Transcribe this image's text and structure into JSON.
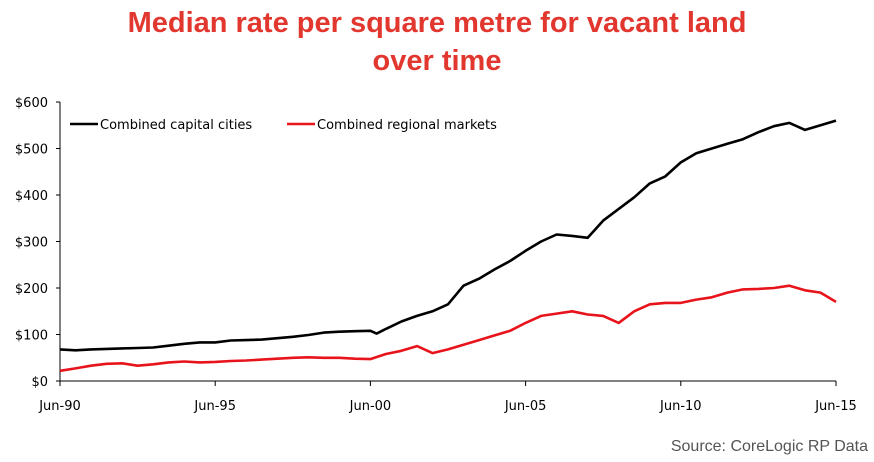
{
  "chart_data": {
    "type": "line",
    "title_lines": [
      "Median rate per square metre for vacant land",
      "over time"
    ],
    "xlabel": "",
    "ylabel": "",
    "x_ticks": [
      "Jun-90",
      "Jun-95",
      "Jun-00",
      "Jun-05",
      "Jun-10",
      "Jun-15"
    ],
    "y_ticks": [
      "$0",
      "$100",
      "$200",
      "$300",
      "$400",
      "$500",
      "$600"
    ],
    "ylim": [
      0,
      600
    ],
    "xlim": [
      1990.5,
      2015.5
    ],
    "grid": false,
    "legend_position": "top-left",
    "series": [
      {
        "name": "Combined capital cities",
        "color": "#000000",
        "points": [
          [
            1990.5,
            68
          ],
          [
            1991.0,
            66
          ],
          [
            1991.5,
            68
          ],
          [
            1992.0,
            69
          ],
          [
            1992.5,
            70
          ],
          [
            1993.0,
            71
          ],
          [
            1993.5,
            72
          ],
          [
            1994.0,
            76
          ],
          [
            1994.5,
            80
          ],
          [
            1995.0,
            83
          ],
          [
            1995.5,
            83
          ],
          [
            1996.0,
            87
          ],
          [
            1996.5,
            88
          ],
          [
            1997.0,
            89
          ],
          [
            1997.5,
            92
          ],
          [
            1998.0,
            95
          ],
          [
            1998.5,
            99
          ],
          [
            1999.0,
            104
          ],
          [
            1999.5,
            106
          ],
          [
            2000.0,
            107
          ],
          [
            2000.5,
            108
          ],
          [
            2000.7,
            102
          ],
          [
            2001.0,
            112
          ],
          [
            2001.5,
            128
          ],
          [
            2002.0,
            140
          ],
          [
            2002.5,
            150
          ],
          [
            2003.0,
            165
          ],
          [
            2003.5,
            205
          ],
          [
            2004.0,
            220
          ],
          [
            2004.5,
            240
          ],
          [
            2005.0,
            258
          ],
          [
            2005.5,
            280
          ],
          [
            2006.0,
            300
          ],
          [
            2006.5,
            315
          ],
          [
            2007.0,
            312
          ],
          [
            2007.5,
            308
          ],
          [
            2008.0,
            345
          ],
          [
            2008.5,
            370
          ],
          [
            2009.0,
            395
          ],
          [
            2009.5,
            425
          ],
          [
            2010.0,
            440
          ],
          [
            2010.5,
            470
          ],
          [
            2011.0,
            490
          ],
          [
            2011.5,
            500
          ],
          [
            2012.0,
            510
          ],
          [
            2012.5,
            520
          ],
          [
            2013.0,
            535
          ],
          [
            2013.5,
            548
          ],
          [
            2014.0,
            555
          ],
          [
            2014.5,
            540
          ],
          [
            2015.0,
            550
          ],
          [
            2015.5,
            560
          ]
        ]
      },
      {
        "name": "Combined regional markets",
        "color": "#e8141c",
        "points": [
          [
            1990.5,
            22
          ],
          [
            1991.0,
            27
          ],
          [
            1991.5,
            33
          ],
          [
            1992.0,
            37
          ],
          [
            1992.5,
            38
          ],
          [
            1993.0,
            33
          ],
          [
            1993.5,
            36
          ],
          [
            1994.0,
            40
          ],
          [
            1994.5,
            42
          ],
          [
            1995.0,
            40
          ],
          [
            1995.5,
            41
          ],
          [
            1996.0,
            43
          ],
          [
            1996.5,
            44
          ],
          [
            1997.0,
            46
          ],
          [
            1997.5,
            48
          ],
          [
            1998.0,
            50
          ],
          [
            1998.5,
            51
          ],
          [
            1999.0,
            50
          ],
          [
            1999.5,
            50
          ],
          [
            2000.0,
            48
          ],
          [
            2000.5,
            47
          ],
          [
            2001.0,
            58
          ],
          [
            2001.5,
            65
          ],
          [
            2002.0,
            75
          ],
          [
            2002.5,
            60
          ],
          [
            2003.0,
            68
          ],
          [
            2003.5,
            78
          ],
          [
            2004.0,
            88
          ],
          [
            2004.5,
            98
          ],
          [
            2005.0,
            108
          ],
          [
            2005.5,
            125
          ],
          [
            2006.0,
            140
          ],
          [
            2006.5,
            145
          ],
          [
            2007.0,
            150
          ],
          [
            2007.5,
            143
          ],
          [
            2008.0,
            140
          ],
          [
            2008.5,
            125
          ],
          [
            2009.0,
            150
          ],
          [
            2009.5,
            165
          ],
          [
            2010.0,
            168
          ],
          [
            2010.5,
            168
          ],
          [
            2011.0,
            175
          ],
          [
            2011.5,
            180
          ],
          [
            2012.0,
            190
          ],
          [
            2012.5,
            197
          ],
          [
            2013.0,
            198
          ],
          [
            2013.5,
            200
          ],
          [
            2014.0,
            205
          ],
          [
            2014.5,
            195
          ],
          [
            2015.0,
            190
          ],
          [
            2015.5,
            170
          ]
        ]
      }
    ],
    "source": "Source: CoreLogic RP Data"
  },
  "colors": {
    "title": "#e2372f",
    "axis": "#000000"
  }
}
